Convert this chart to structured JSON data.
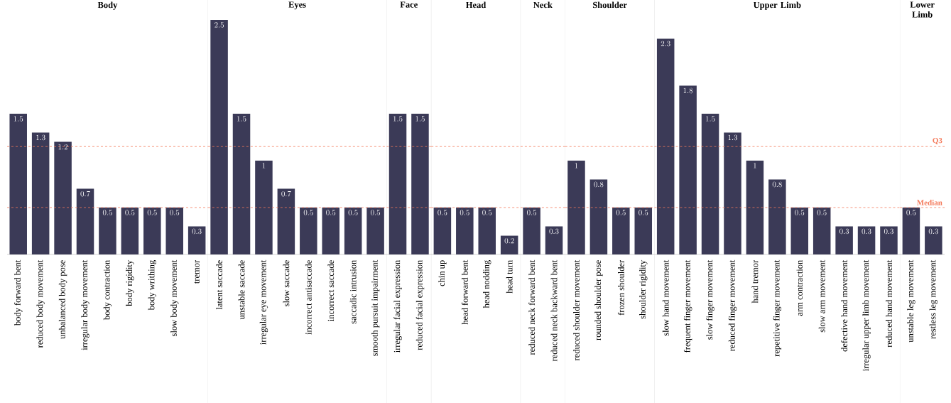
{
  "chart_data": [
    {
      "type": "bar",
      "title": "Body",
      "categories": [
        "body forward bent",
        "reduced body movement",
        "unbalanced body pose",
        "irregular body movement",
        "body contraction",
        "body rigidity",
        "body writhing",
        "slow body movement",
        "tremor"
      ],
      "values": [
        1.5,
        1.3,
        1.2,
        0.7,
        0.5,
        0.5,
        0.5,
        0.5,
        0.3
      ],
      "color": "#3b3a57",
      "data_labels": true,
      "ref_lines": [
        {
          "axis": "y",
          "value": 1.15,
          "color": "#f4795a",
          "line_style": "dashed"
        },
        {
          "axis": "y",
          "value": 0.5,
          "color": "#f4795a",
          "line_style": "dashed"
        }
      ]
    },
    {
      "type": "bar",
      "title": "Eyes",
      "categories": [
        "latent saccade",
        "unstable saccade",
        "irregular eye movement",
        "slow saccade",
        "incorrect antisaccade",
        "incorrect saccade",
        "saccadic intrusion",
        "smooth pursuit impairment"
      ],
      "values": [
        2.5,
        1.5,
        1,
        0.7,
        0.5,
        0.5,
        0.5,
        0.5
      ],
      "color": "#3b3a57",
      "data_labels": true,
      "ref_lines": [
        {
          "axis": "y",
          "value": 1.15,
          "color": "#f4795a",
          "line_style": "dashed"
        },
        {
          "axis": "y",
          "value": 0.5,
          "color": "#f4795a",
          "line_style": "dashed"
        }
      ]
    },
    {
      "type": "bar",
      "title": "Face",
      "categories": [
        "irregular facial expression",
        "reduced facial expression"
      ],
      "values": [
        1.5,
        1.5
      ],
      "color": "#3b3a57",
      "data_labels": true,
      "ref_lines": [
        {
          "axis": "y",
          "value": 1.15,
          "color": "#f4795a",
          "line_style": "dashed"
        },
        {
          "axis": "y",
          "value": 0.5,
          "color": "#f4795a",
          "line_style": "dashed"
        }
      ]
    },
    {
      "type": "bar",
      "title": "Head",
      "categories": [
        "chin up",
        "head forward bent",
        "head nodding",
        "head turn"
      ],
      "values": [
        0.5,
        0.5,
        0.5,
        0.2
      ],
      "color": "#3b3a57",
      "data_labels": true,
      "ref_lines": [
        {
          "axis": "y",
          "value": 1.15,
          "color": "#f4795a",
          "line_style": "dashed"
        },
        {
          "axis": "y",
          "value": 0.5,
          "color": "#f4795a",
          "line_style": "dashed"
        }
      ]
    },
    {
      "type": "bar",
      "title": "Neck",
      "categories": [
        "reduced neck forward bent",
        "reduced neck backward bent"
      ],
      "values": [
        0.5,
        0.3
      ],
      "color": "#3b3a57",
      "data_labels": true,
      "ref_lines": [
        {
          "axis": "y",
          "value": 1.15,
          "color": "#f4795a",
          "line_style": "dashed"
        },
        {
          "axis": "y",
          "value": 0.5,
          "color": "#f4795a",
          "line_style": "dashed"
        }
      ]
    },
    {
      "type": "bar",
      "title": "Shoulder",
      "categories": [
        "reduced shoulder movement",
        "rounded shoulder pose",
        "frozen shoulder",
        "shoulder rigidity"
      ],
      "values": [
        1,
        0.8,
        0.5,
        0.5
      ],
      "color": "#3b3a57",
      "data_labels": true,
      "ref_lines": [
        {
          "axis": "y",
          "value": 1.15,
          "color": "#f4795a",
          "line_style": "dashed"
        },
        {
          "axis": "y",
          "value": 0.5,
          "color": "#f4795a",
          "line_style": "dashed"
        }
      ]
    },
    {
      "type": "bar",
      "title": "Upper Limb",
      "categories": [
        "slow hand movement",
        "frequent finger movement",
        "slow finger movement",
        "reduced finger movement",
        "hand tremor",
        "repetitive finger movement",
        "arm contraction",
        "slow arm movement",
        "defective hand movement",
        "irregular upper limb movement",
        "reduced hand movement"
      ],
      "values": [
        2.3,
        1.8,
        1.5,
        1.3,
        1,
        0.8,
        0.5,
        0.5,
        0.3,
        0.3,
        0.3
      ],
      "color": "#3b3a57",
      "data_labels": true,
      "ref_lines": [
        {
          "axis": "y",
          "value": 1.15,
          "color": "#f4795a",
          "line_style": "dashed"
        },
        {
          "axis": "y",
          "value": 0.5,
          "color": "#f4795a",
          "line_style": "dashed"
        }
      ]
    },
    {
      "type": "bar",
      "title": "Lower Limb",
      "categories": [
        "unstable leg movement",
        "restless leg movement"
      ],
      "values": [
        0.5,
        0.3
      ],
      "color": "#3b3a57",
      "data_labels": true,
      "ref_lines": [
        {
          "axis": "y",
          "value": 1.15,
          "label": "Q3",
          "color": "#f4795a",
          "line_style": "dashed"
        },
        {
          "axis": "y",
          "value": 0.5,
          "label": "Median",
          "color": "#f4795a",
          "line_style": "dashed"
        }
      ]
    }
  ]
}
